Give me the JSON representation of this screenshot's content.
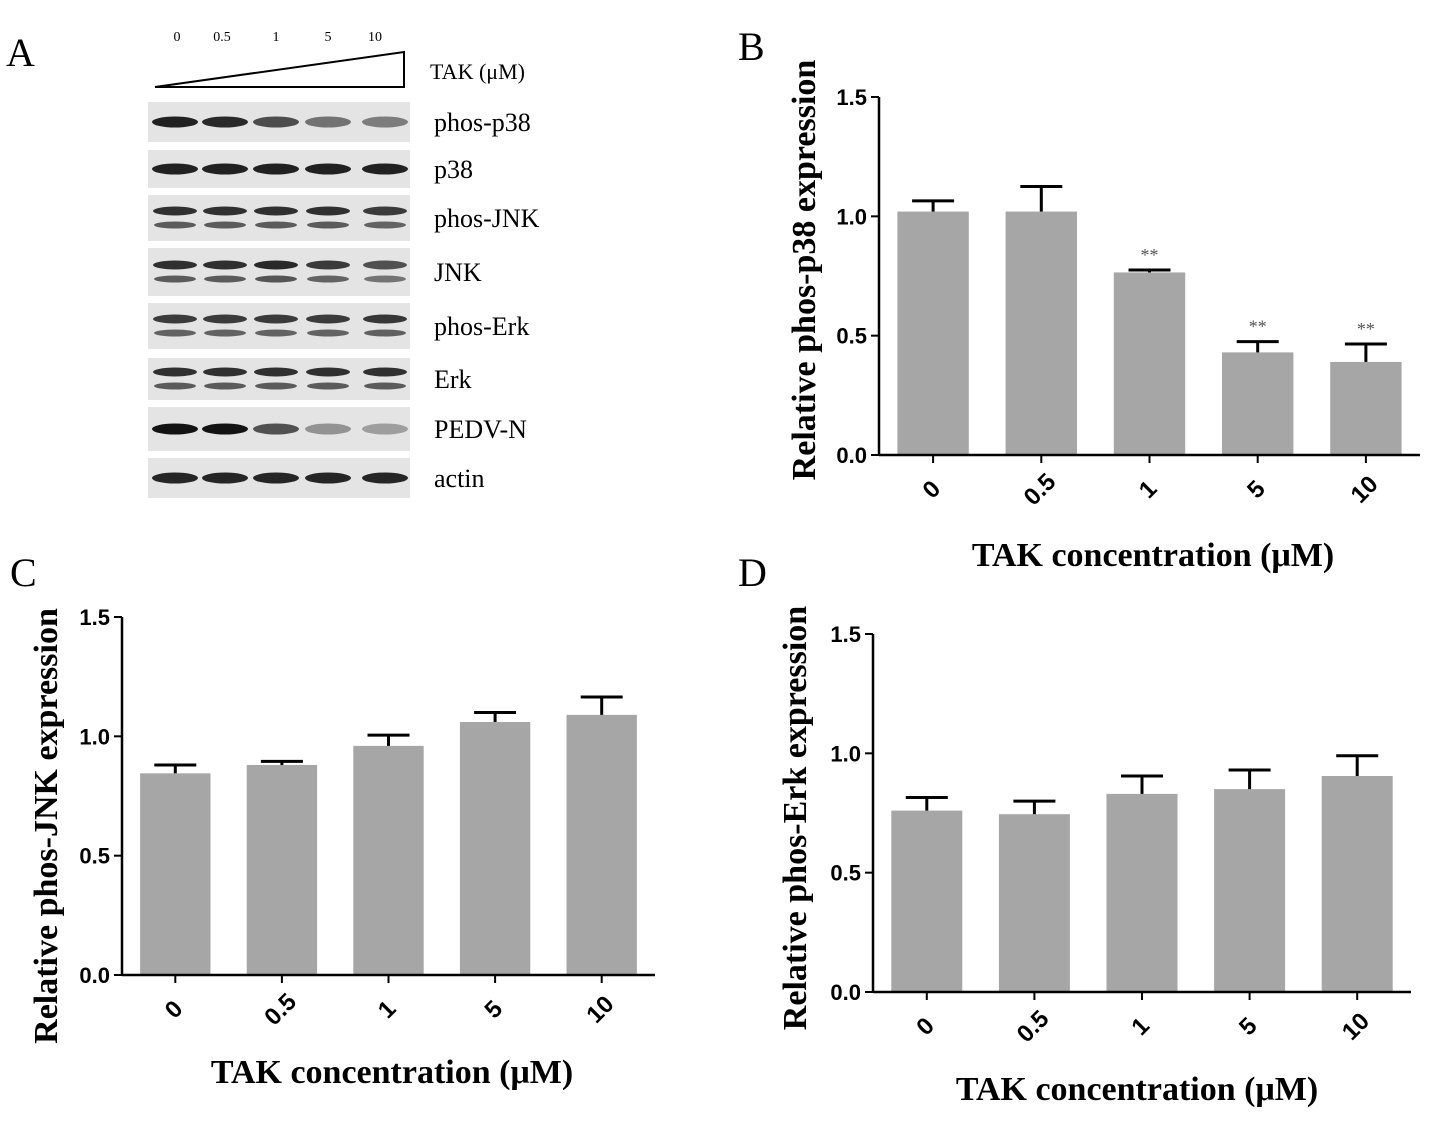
{
  "panels": {
    "a": {
      "letter": "A"
    },
    "b": {
      "letter": "B"
    },
    "c": {
      "letter": "C"
    },
    "d": {
      "letter": "D"
    }
  },
  "western_blot": {
    "concentrations": [
      "0",
      "0.5",
      "1",
      "5",
      "10"
    ],
    "treatment_label": "TAK (μM)",
    "bands": [
      {
        "name": "phos-p38",
        "intensity": [
          0.92,
          0.88,
          0.72,
          0.55,
          0.5
        ],
        "double": false
      },
      {
        "name": "p38",
        "intensity": [
          0.92,
          0.92,
          0.92,
          0.92,
          0.92
        ],
        "double": false
      },
      {
        "name": "phos-JNK",
        "intensity": [
          0.85,
          0.85,
          0.85,
          0.85,
          0.8
        ],
        "double": true
      },
      {
        "name": "JNK",
        "intensity": [
          0.85,
          0.85,
          0.88,
          0.8,
          0.7
        ],
        "double": true
      },
      {
        "name": "phos-Erk",
        "intensity": [
          0.8,
          0.8,
          0.8,
          0.8,
          0.82
        ],
        "double": true
      },
      {
        "name": "Erk",
        "intensity": [
          0.85,
          0.85,
          0.85,
          0.85,
          0.85
        ],
        "double": true
      },
      {
        "name": "PEDV-N",
        "intensity": [
          0.98,
          0.98,
          0.7,
          0.4,
          0.35
        ],
        "double": false
      },
      {
        "name": "actin",
        "intensity": [
          0.9,
          0.9,
          0.9,
          0.9,
          0.9
        ],
        "double": false
      }
    ]
  },
  "chart_data": [
    {
      "panel": "B",
      "type": "bar",
      "categories": [
        "0",
        "0.5",
        "1",
        "5",
        "10"
      ],
      "values": [
        1.02,
        1.02,
        0.765,
        0.43,
        0.39
      ],
      "errors": [
        0.045,
        0.105,
        0.01,
        0.045,
        0.075
      ],
      "significance": [
        "",
        "",
        "**",
        "**",
        "**"
      ],
      "xlabel": "TAK concentration (μM)",
      "ylabel": "Relative phos-p38 expression",
      "ylim": [
        0,
        1.5
      ],
      "yticks": [
        "0.0",
        "0.5",
        "1.0",
        "1.5"
      ]
    },
    {
      "panel": "C",
      "type": "bar",
      "categories": [
        "0",
        "0.5",
        "1",
        "5",
        "10"
      ],
      "values": [
        0.845,
        0.88,
        0.96,
        1.06,
        1.09
      ],
      "errors": [
        0.035,
        0.015,
        0.045,
        0.04,
        0.075
      ],
      "significance": [
        "",
        "",
        "",
        "",
        ""
      ],
      "xlabel": "TAK concentration (μM)",
      "ylabel": "Relative phos-JNK expression",
      "ylim": [
        0,
        1.5
      ],
      "yticks": [
        "0.0",
        "0.5",
        "1.0",
        "1.5"
      ]
    },
    {
      "panel": "D",
      "type": "bar",
      "categories": [
        "0",
        "0.5",
        "1",
        "5",
        "10"
      ],
      "values": [
        0.76,
        0.745,
        0.83,
        0.85,
        0.905
      ],
      "errors": [
        0.055,
        0.055,
        0.075,
        0.08,
        0.085
      ],
      "significance": [
        "",
        "",
        "",
        "",
        ""
      ],
      "xlabel": "TAK concentration (μM)",
      "ylabel": "Relative phos-Erk expression",
      "ylim": [
        0,
        1.5
      ],
      "yticks": [
        "0.0",
        "0.5",
        "1.0",
        "1.5"
      ]
    }
  ],
  "colors": {
    "bar": "#a6a6a6",
    "axis": "#000000",
    "blot_background": "#e4e4e4"
  }
}
